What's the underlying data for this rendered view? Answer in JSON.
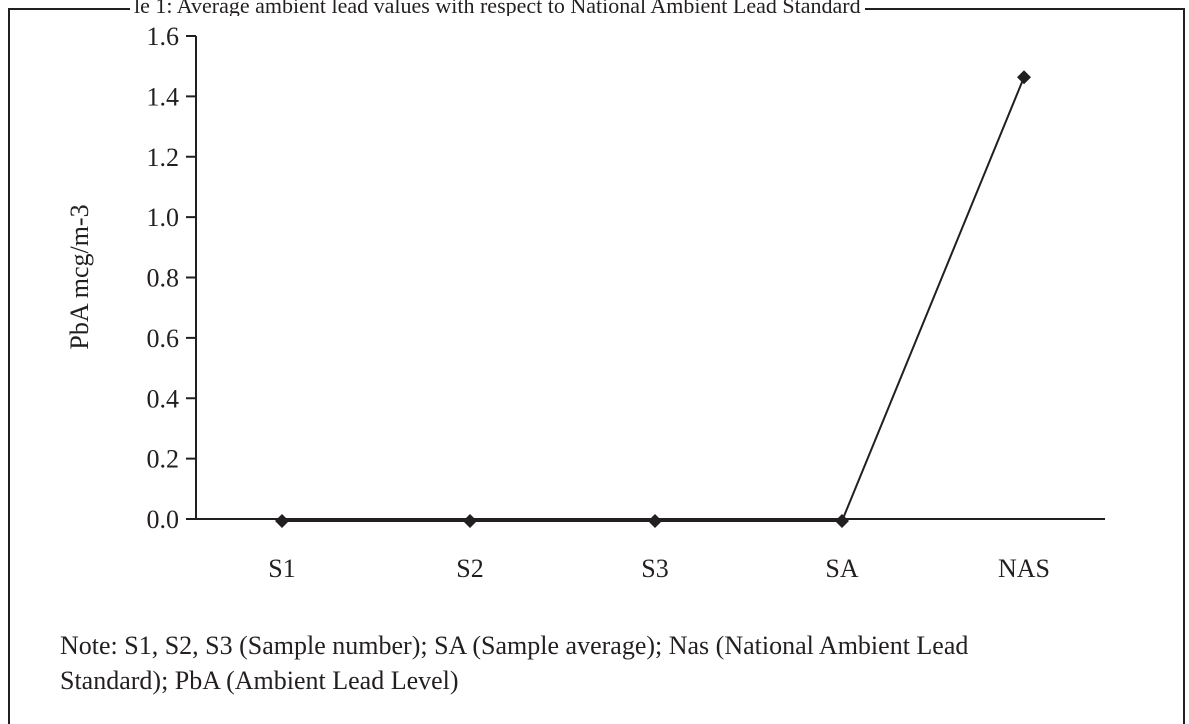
{
  "header_fragment": "le 1: Average ambient lead values with respect to National Ambient Lead Standard",
  "note": {
    "line1": "Note: S1, S2, S3 (Sample number); SA (Sample average); Nas (National Ambient Lead",
    "line2": "Standard); PbA (Ambient Lead Level)"
  },
  "chart_data": {
    "type": "line",
    "categories": [
      "S1",
      "S2",
      "S3",
      "SA",
      "NAS"
    ],
    "values": [
      0.0,
      0.0,
      0.0,
      0.0,
      1.47
    ],
    "ylabel": "PbA mcg/m-3",
    "xlabel": "",
    "ylim": [
      0.0,
      1.6
    ],
    "yticks": [
      "0.0",
      "0.2",
      "0.4",
      "0.6",
      "0.8",
      "1.0",
      "1.2",
      "1.4",
      "1.6"
    ],
    "marker": "diamond",
    "line_color": "#231f20",
    "grid": false
  }
}
